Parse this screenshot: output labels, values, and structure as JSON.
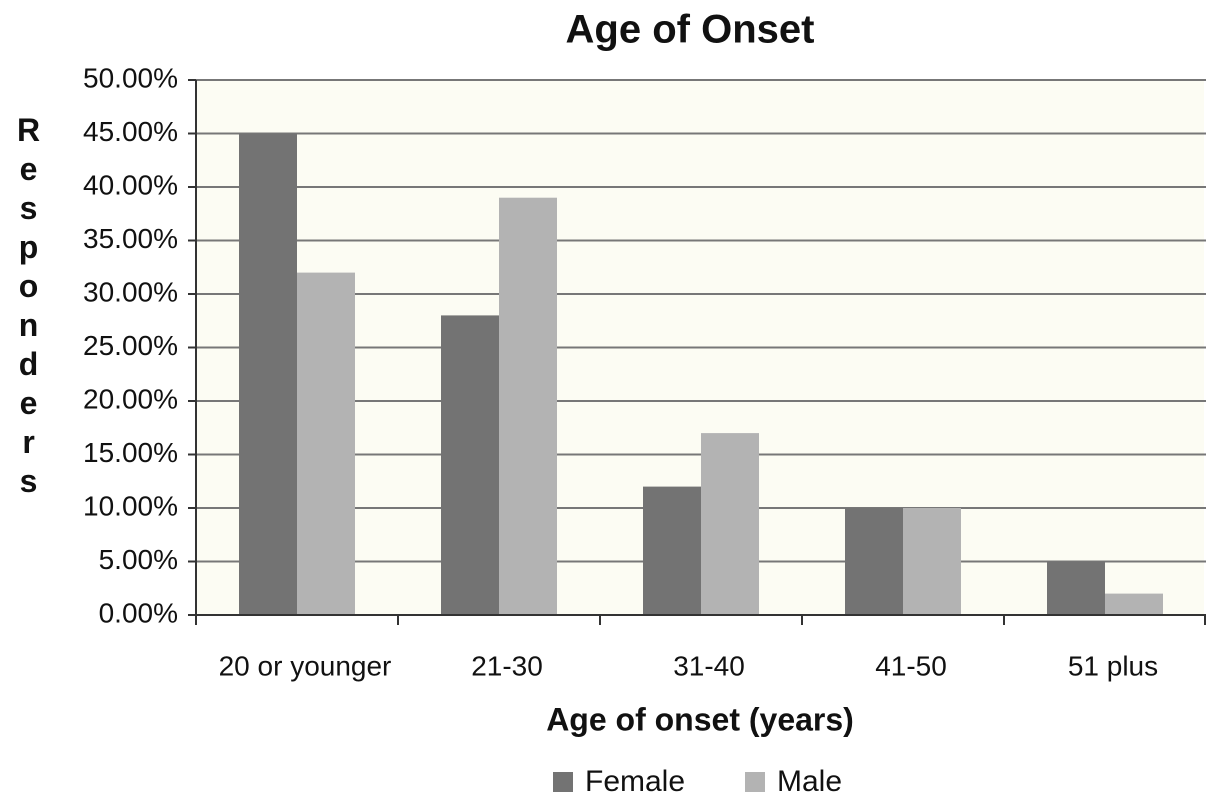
{
  "chart_data": {
    "type": "bar",
    "title": "Age of Onset",
    "x_label": "Age of onset (years)",
    "y_label": "Responders",
    "categories": [
      "20 or younger",
      "21-30",
      "31-40",
      "41-50",
      "51 plus"
    ],
    "series": [
      {
        "name": "Female",
        "color": "#737373",
        "values": [
          45,
          28,
          12,
          10,
          5
        ]
      },
      {
        "name": "Male",
        "color": "#b3b3b3",
        "values": [
          32,
          39,
          17,
          10,
          2
        ]
      }
    ],
    "ylim": [
      0,
      50
    ],
    "yticks": [
      {
        "value": 0,
        "label": "0.00%"
      },
      {
        "value": 5,
        "label": "5.00%"
      },
      {
        "value": 10,
        "label": "10.00%"
      },
      {
        "value": 15,
        "label": "15.00%"
      },
      {
        "value": 20,
        "label": "20.00%"
      },
      {
        "value": 25,
        "label": "25.00%"
      },
      {
        "value": 30,
        "label": "30.00%"
      },
      {
        "value": 35,
        "label": "35.00%"
      },
      {
        "value": 40,
        "label": "40.00%"
      },
      {
        "value": 45,
        "label": "45.00%"
      },
      {
        "value": 50,
        "label": "50.00%"
      }
    ],
    "grid": true,
    "legend": "bottom"
  }
}
